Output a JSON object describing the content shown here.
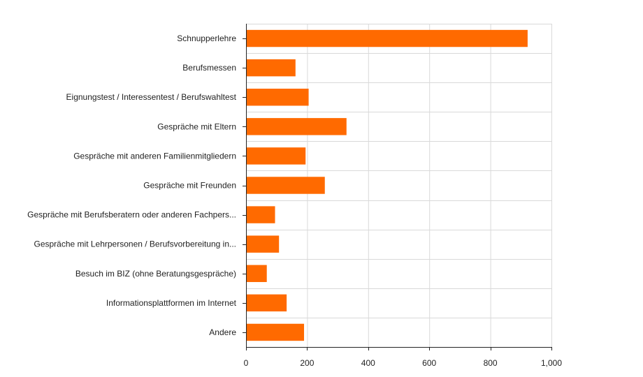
{
  "chart_data": {
    "type": "bar",
    "orientation": "horizontal",
    "categories": [
      "Schnupperlehre",
      "Berufsmessen",
      "Eignungstest / Interessentest / Berufswahltest",
      "Gespräche mit Eltern",
      "Gespräche mit anderen Familienmitgliedern",
      "Gespräche mit Freunden",
      "Gespräche mit Berufsberatern oder anderen Fachpers...",
      "Gespräche mit Lehrpersonen / Berufsvorbereitung in...",
      "Besuch im BIZ (ohne Beratungsgespräche)",
      "Informationsplattformen im Internet",
      "Andere"
    ],
    "values": [
      922,
      162,
      205,
      329,
      195,
      258,
      95,
      108,
      68,
      133,
      190
    ],
    "xlim": [
      0,
      1000
    ],
    "xticks": [
      0,
      200,
      400,
      600,
      800,
      1000
    ],
    "xtick_labels": [
      "0",
      "200",
      "400",
      "600",
      "800",
      "1,000"
    ],
    "title": "",
    "xlabel": "",
    "ylabel": "",
    "grid": true,
    "legend": "none",
    "bar_color": "#ff6a00"
  }
}
